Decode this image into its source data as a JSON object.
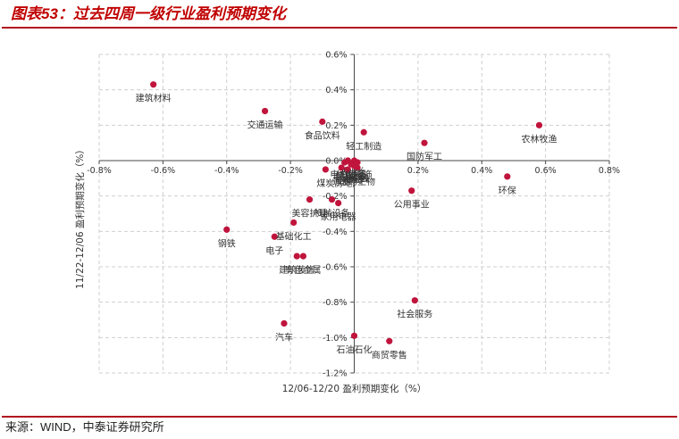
{
  "header": {
    "title": "图表53：过去四周一级行业盈利预期变化"
  },
  "footer": {
    "source": "来源：WIND，中泰证券研究所"
  },
  "chart_data": {
    "type": "scatter",
    "title": "",
    "xlabel": "12/06-12/20 盈利预期变化（%）",
    "ylabel": "11/22-12/06 盈利预期变化（%）",
    "xlim": [
      -0.8,
      0.8
    ],
    "ylim": [
      -1.2,
      0.6
    ],
    "xticks": [
      -0.8,
      -0.6,
      -0.4,
      -0.2,
      0.0,
      0.2,
      0.4,
      0.6,
      0.8
    ],
    "xtick_labels": [
      "-0.8%",
      "-0.6%",
      "-0.4%",
      "-0.2%",
      "0.0%",
      "0.2%",
      "0.4%",
      "0.6%",
      "0.8%"
    ],
    "yticks": [
      0.6,
      0.4,
      0.2,
      0.0,
      -0.2,
      -0.4,
      -0.6,
      -0.8,
      -1.0,
      -1.2
    ],
    "ytick_labels": [
      "0.6%",
      "0.4%",
      "0.2%",
      "0.0%",
      "-0.2%",
      "-0.4%",
      "-0.6%",
      "-0.8%",
      "-1.0%",
      "-1.2%"
    ],
    "grid": true,
    "axes_cross_at_zero": true,
    "point_color": "#c0143c",
    "points": [
      {
        "name": "建筑材料",
        "x": -0.63,
        "y": 0.43
      },
      {
        "name": "交通运输",
        "x": -0.28,
        "y": 0.28
      },
      {
        "name": "食品饮料",
        "x": -0.1,
        "y": 0.22
      },
      {
        "name": "轻工制造",
        "x": 0.03,
        "y": 0.16
      },
      {
        "name": "国防军工",
        "x": 0.22,
        "y": 0.1
      },
      {
        "name": "农林牧渔",
        "x": 0.58,
        "y": 0.2
      },
      {
        "name": "环保",
        "x": 0.48,
        "y": -0.09
      },
      {
        "name": "公用事业",
        "x": 0.18,
        "y": -0.17
      },
      {
        "name": "社会服务",
        "x": 0.19,
        "y": -0.79
      },
      {
        "name": "商贸零售",
        "x": 0.11,
        "y": -1.02
      },
      {
        "name": "石油石化",
        "x": 0.0,
        "y": -0.99
      },
      {
        "name": "汽车",
        "x": -0.22,
        "y": -0.92
      },
      {
        "name": "钢铁",
        "x": -0.4,
        "y": -0.39
      },
      {
        "name": "基础化工",
        "x": -0.19,
        "y": -0.35
      },
      {
        "name": "电子",
        "x": -0.25,
        "y": -0.43
      },
      {
        "name": "美容护理",
        "x": -0.14,
        "y": -0.22
      },
      {
        "name": "机械设备",
        "x": -0.07,
        "y": -0.22
      },
      {
        "name": "家用电器",
        "x": -0.05,
        "y": -0.24
      },
      {
        "name": "建筑装饰",
        "x": -0.18,
        "y": -0.54
      },
      {
        "name": "有色金属",
        "x": -0.16,
        "y": -0.54
      },
      {
        "name": "煤炭",
        "x": -0.09,
        "y": -0.05
      },
      {
        "name": "通信",
        "x": -0.04,
        "y": -0.04
      },
      {
        "name": "房地产",
        "x": -0.02,
        "y": -0.05
      },
      {
        "name": "电力设备",
        "x": -0.02,
        "y": 0.0
      },
      {
        "name": "纺织服饰",
        "x": 0.0,
        "y": 0.0
      },
      {
        "name": "医药生物",
        "x": 0.01,
        "y": -0.04
      },
      {
        "name": "银行",
        "x": 0.0,
        "y": -0.03
      },
      {
        "name": "非银金融",
        "x": -0.01,
        "y": -0.02
      },
      {
        "name": "计算机",
        "x": 0.0,
        "y": -0.02
      },
      {
        "name": "传媒",
        "x": -0.03,
        "y": -0.01
      },
      {
        "name": "综合",
        "x": 0.01,
        "y": -0.01
      }
    ]
  }
}
